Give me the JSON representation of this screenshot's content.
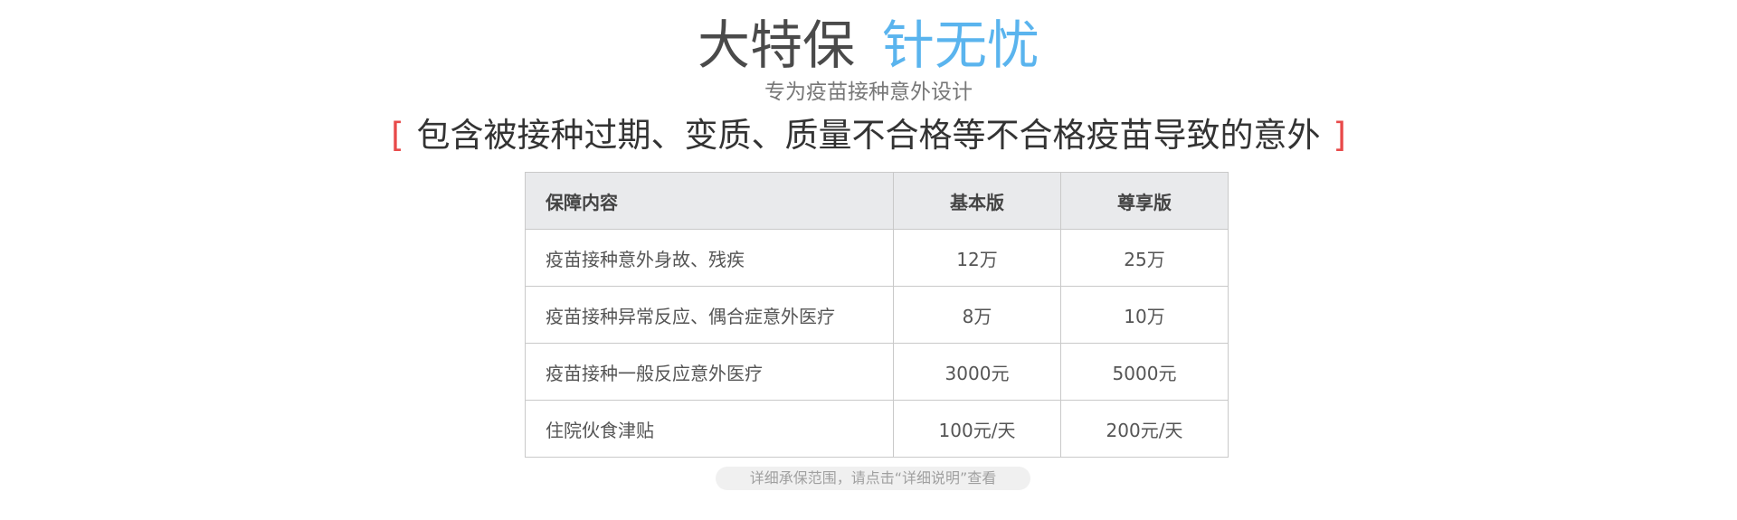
{
  "headline": {
    "part1": "大特保",
    "part2": "针无忧"
  },
  "subtitle": "专为疫苗接种意外设计",
  "tagline": {
    "open": "[",
    "text": "包含被接种过期、变质、质量不合格等不合格疫苗导致的意外",
    "close": "]"
  },
  "table": {
    "headers": [
      "保障内容",
      "基本版",
      "尊享版"
    ],
    "rows": [
      [
        "疫苗接种意外身故、残疾",
        "12万",
        "25万"
      ],
      [
        "疫苗接种异常反应、偶合症意外医疗",
        "8万",
        "10万"
      ],
      [
        "疫苗接种一般反应意外医疗",
        "3000元",
        "5000元"
      ],
      [
        "住院伙食津贴",
        "100元/天",
        "200元/天"
      ]
    ]
  },
  "note": "详细承保范围，请点击“详细说明”查看",
  "colors": {
    "accent_blue": "#5ab4ee",
    "bracket_red": "#e84a4a",
    "header_bg": "#e9eaec"
  }
}
